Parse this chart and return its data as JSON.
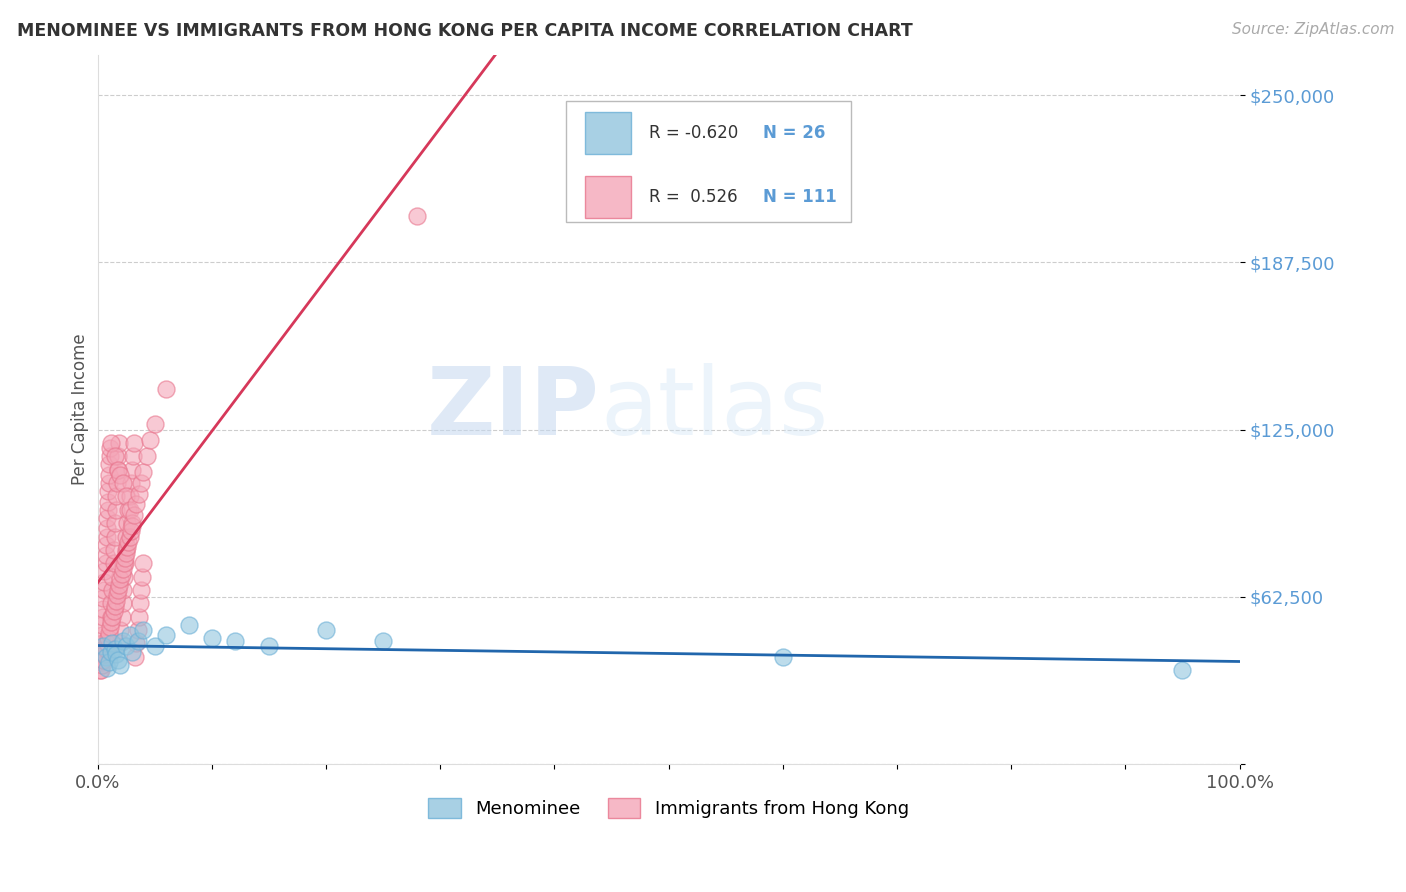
{
  "title": "MENOMINEE VS IMMIGRANTS FROM HONG KONG PER CAPITA INCOME CORRELATION CHART",
  "source": "Source: ZipAtlas.com",
  "ylabel": "Per Capita Income",
  "xlim": [
    0.0,
    1.0
  ],
  "ylim": [
    0,
    265000
  ],
  "ytick_vals": [
    0,
    62500,
    125000,
    187500,
    250000
  ],
  "ytick_labels": [
    "",
    "$62,500",
    "$125,000",
    "$187,500",
    "$250,000"
  ],
  "watermark_zip": "ZIP",
  "watermark_atlas": "atlas",
  "menominee_color": "#92c5de",
  "menominee_edge": "#6aafd6",
  "hk_color": "#f4a6b8",
  "hk_edge": "#e8748c",
  "menominee_trend_color": "#2166ac",
  "hk_trend_color": "#d6385a",
  "ytick_color": "#5b9bd5",
  "legend_r_color": "#333333",
  "legend_n_color": "#5b9bd5",
  "background_color": "#ffffff",
  "grid_color": "#c8c8c8",
  "menominee_scatter_x": [
    0.005,
    0.007,
    0.008,
    0.01,
    0.012,
    0.013,
    0.015,
    0.016,
    0.018,
    0.02,
    0.022,
    0.025,
    0.028,
    0.03,
    0.035,
    0.04,
    0.05,
    0.06,
    0.08,
    0.1,
    0.12,
    0.15,
    0.2,
    0.25,
    0.6,
    0.95
  ],
  "menominee_scatter_y": [
    44000,
    40000,
    36000,
    38000,
    42000,
    45000,
    43000,
    41000,
    39000,
    37000,
    46000,
    44000,
    48000,
    42000,
    46000,
    50000,
    44000,
    48000,
    52000,
    47000,
    46000,
    44000,
    50000,
    46000,
    40000,
    35000
  ],
  "hk_scatter_x": [
    0.002,
    0.003,
    0.003,
    0.004,
    0.004,
    0.004,
    0.005,
    0.005,
    0.005,
    0.006,
    0.006,
    0.006,
    0.007,
    0.007,
    0.007,
    0.008,
    0.008,
    0.008,
    0.009,
    0.009,
    0.009,
    0.01,
    0.01,
    0.01,
    0.011,
    0.011,
    0.012,
    0.012,
    0.013,
    0.013,
    0.014,
    0.014,
    0.015,
    0.015,
    0.016,
    0.016,
    0.017,
    0.018,
    0.018,
    0.019,
    0.02,
    0.02,
    0.021,
    0.022,
    0.022,
    0.023,
    0.024,
    0.025,
    0.025,
    0.026,
    0.027,
    0.028,
    0.029,
    0.03,
    0.031,
    0.032,
    0.033,
    0.034,
    0.035,
    0.036,
    0.037,
    0.038,
    0.039,
    0.04,
    0.012,
    0.015,
    0.018,
    0.02,
    0.022,
    0.025,
    0.028,
    0.03,
    0.003,
    0.004,
    0.005,
    0.006,
    0.007,
    0.008,
    0.009,
    0.01,
    0.011,
    0.012,
    0.013,
    0.014,
    0.015,
    0.016,
    0.017,
    0.018,
    0.019,
    0.02,
    0.021,
    0.022,
    0.023,
    0.024,
    0.025,
    0.026,
    0.027,
    0.028,
    0.029,
    0.03,
    0.032,
    0.034,
    0.036,
    0.038,
    0.04,
    0.043,
    0.046,
    0.05,
    0.06,
    0.28
  ],
  "hk_scatter_y": [
    35000,
    38000,
    42000,
    45000,
    48000,
    52000,
    55000,
    58000,
    62000,
    65000,
    68000,
    72000,
    75000,
    78000,
    82000,
    85000,
    88000,
    92000,
    95000,
    98000,
    102000,
    105000,
    108000,
    112000,
    115000,
    118000,
    55000,
    60000,
    65000,
    70000,
    75000,
    80000,
    85000,
    90000,
    95000,
    100000,
    105000,
    110000,
    115000,
    120000,
    45000,
    50000,
    55000,
    60000,
    65000,
    70000,
    75000,
    80000,
    85000,
    90000,
    95000,
    100000,
    105000,
    110000,
    115000,
    120000,
    40000,
    45000,
    50000,
    55000,
    60000,
    65000,
    70000,
    75000,
    120000,
    115000,
    110000,
    108000,
    105000,
    100000,
    95000,
    90000,
    35000,
    37000,
    39000,
    41000,
    43000,
    45000,
    47000,
    49000,
    51000,
    53000,
    55000,
    57000,
    59000,
    61000,
    63000,
    65000,
    67000,
    69000,
    71000,
    73000,
    75000,
    77000,
    79000,
    81000,
    83000,
    85000,
    87000,
    89000,
    93000,
    97000,
    101000,
    105000,
    109000,
    115000,
    121000,
    127000,
    140000,
    205000
  ],
  "hk_trend_x_start": 0.0,
  "hk_trend_x_end": 0.5,
  "menominee_trend_x_start": 0.0,
  "menominee_trend_x_end": 1.0
}
